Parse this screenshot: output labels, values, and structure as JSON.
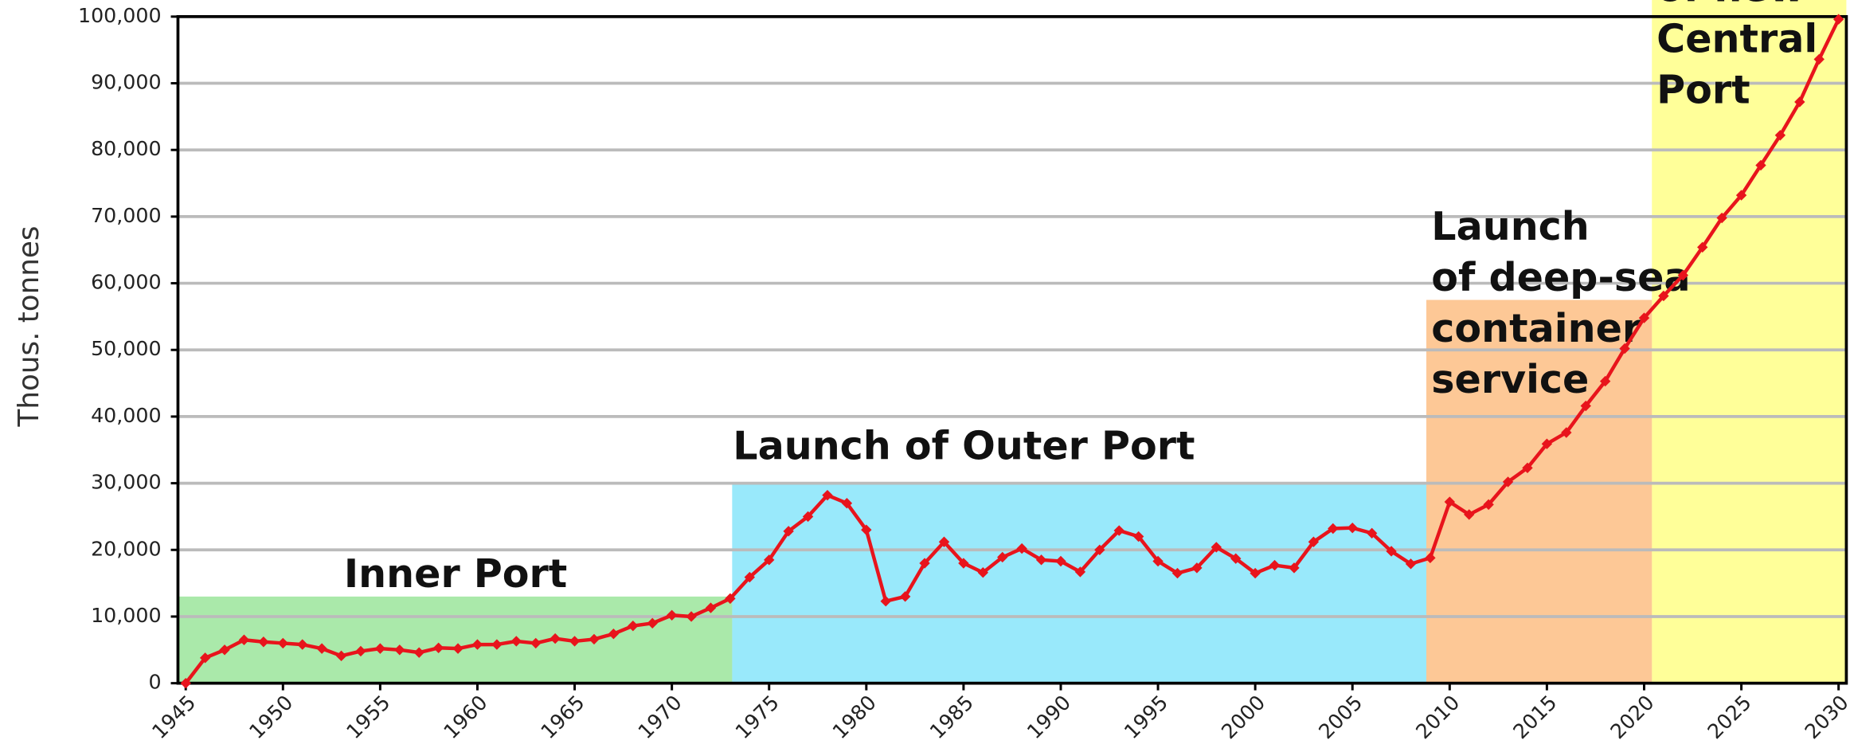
{
  "chart_data": {
    "type": "line",
    "ylabel": "Thous. tonnes",
    "x": [
      1945,
      1946,
      1947,
      1948,
      1949,
      1950,
      1951,
      1952,
      1953,
      1954,
      1955,
      1956,
      1957,
      1958,
      1959,
      1960,
      1961,
      1962,
      1963,
      1964,
      1965,
      1966,
      1967,
      1968,
      1969,
      1970,
      1971,
      1972,
      1973,
      1974,
      1975,
      1976,
      1977,
      1978,
      1979,
      1980,
      1981,
      1982,
      1983,
      1984,
      1985,
      1986,
      1987,
      1988,
      1989,
      1990,
      1991,
      1992,
      1993,
      1994,
      1995,
      1996,
      1997,
      1998,
      1999,
      2000,
      2001,
      2002,
      2003,
      2004,
      2005,
      2006,
      2007,
      2008,
      2009,
      2010,
      2011,
      2012,
      2013,
      2014,
      2015,
      2016,
      2017,
      2018,
      2019,
      2020,
      2021,
      2022,
      2023,
      2024,
      2025,
      2026,
      2027,
      2028,
      2029,
      2030
    ],
    "series": [
      {
        "color": "#e8141c",
        "values": [
          0,
          3800,
          5000,
          6500,
          6200,
          6000,
          5800,
          5200,
          4100,
          4800,
          5200,
          5000,
          4600,
          5300,
          5200,
          5800,
          5800,
          6300,
          6000,
          6700,
          6300,
          6600,
          7400,
          8600,
          9000,
          10200,
          10000,
          11300,
          12700,
          15900,
          18500,
          22800,
          25000,
          28200,
          27000,
          23000,
          12300,
          13000,
          18000,
          21200,
          18000,
          16600,
          18900,
          20200,
          18500,
          18300,
          16700,
          20000,
          22900,
          22000,
          18300,
          16500,
          17300,
          20400,
          18700,
          16500,
          17700,
          17300,
          21200,
          23200,
          23300,
          22500,
          19800,
          17900,
          18800,
          27200,
          25300,
          26800,
          30200,
          32300,
          35900,
          37600,
          41600,
          45300,
          50200,
          54800,
          58100,
          61200,
          65400,
          69800,
          73200,
          77700,
          82200,
          87200,
          93600,
          99600
        ]
      }
    ],
    "xlim": [
      1944.6,
      2030.4
    ],
    "xticks": [
      1945,
      1950,
      1955,
      1960,
      1965,
      1970,
      1975,
      1980,
      1985,
      1990,
      1995,
      2000,
      2005,
      2010,
      2015,
      2020,
      2025,
      2030
    ],
    "ylim": [
      0,
      100000
    ],
    "yticks": [
      0,
      {
        "value": 10000,
        "label": "10,000"
      },
      {
        "value": 20000,
        "label": "20,000"
      },
      {
        "value": 30000,
        "label": "30,000"
      },
      {
        "value": 40000,
        "label": "40,000"
      },
      {
        "value": 50000,
        "label": "50,000"
      },
      {
        "value": 60000,
        "label": "60,000"
      },
      {
        "value": 70000,
        "label": "70,000"
      },
      {
        "value": 80000,
        "label": "80,000"
      },
      {
        "value": 90000,
        "label": "90,000"
      },
      {
        "value": 100000,
        "label": "100,000"
      }
    ],
    "grid": true,
    "regions": [
      {
        "label": [
          "Inner Port"
        ],
        "from": 1944.6,
        "to": 1973.1,
        "top": 13000,
        "color": "#aae9aa"
      },
      {
        "label": [
          "Launch of Outer Port"
        ],
        "from": 1973.1,
        "to": 2008.8,
        "top": 30000,
        "color": "#99e9fb"
      },
      {
        "label": [
          "Launch",
          "of deep-sea",
          "container",
          "service"
        ],
        "from": 2008.8,
        "to": 2020.4,
        "top": 57500,
        "color": "#fdc896"
      },
      {
        "label": [
          "of new",
          "Central",
          "Port"
        ],
        "from": 2020.4,
        "to": 2030.4,
        "top": 102500,
        "color": "#ffff99"
      }
    ]
  }
}
